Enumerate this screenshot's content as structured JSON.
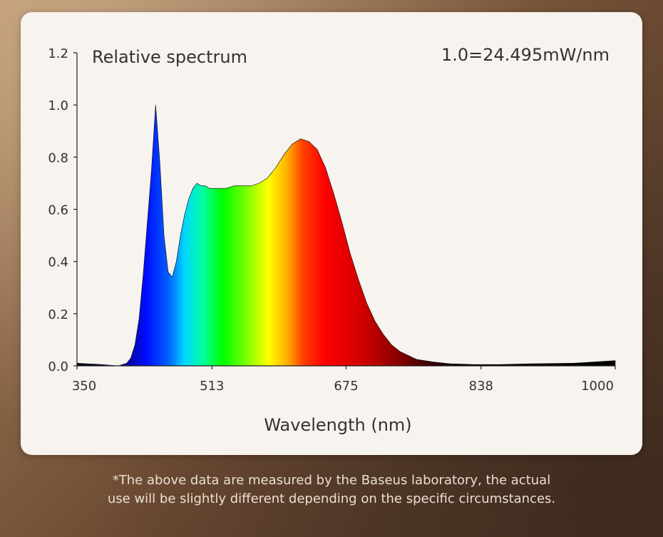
{
  "chart_data": {
    "type": "area",
    "title": "Relative spectrum",
    "annotation": "1.0=24.495mW/nm",
    "xlabel": "Wavelength (nm)",
    "ylabel": "",
    "xlim": [
      350,
      1000
    ],
    "ylim": [
      0,
      1.2
    ],
    "x_ticks": [
      "350",
      "513",
      "675",
      "838",
      "1000"
    ],
    "y_ticks": [
      "0.0",
      "0.2",
      "0.4",
      "0.6",
      "0.8",
      "1.0",
      "1.2"
    ],
    "grid": false,
    "fill": "visible-spectrum color gradient",
    "x": [
      350,
      380,
      400,
      410,
      415,
      420,
      425,
      430,
      435,
      440,
      445,
      450,
      455,
      460,
      465,
      470,
      475,
      480,
      485,
      490,
      495,
      500,
      505,
      510,
      515,
      520,
      530,
      540,
      550,
      560,
      570,
      580,
      590,
      600,
      610,
      620,
      630,
      640,
      650,
      660,
      670,
      680,
      690,
      700,
      710,
      720,
      730,
      740,
      750,
      760,
      780,
      800,
      830,
      860,
      900,
      950,
      1000
    ],
    "values": [
      0.01,
      0.005,
      0.0,
      0.01,
      0.03,
      0.08,
      0.18,
      0.35,
      0.55,
      0.75,
      1.0,
      0.78,
      0.5,
      0.36,
      0.34,
      0.4,
      0.5,
      0.58,
      0.64,
      0.68,
      0.7,
      0.69,
      0.69,
      0.68,
      0.68,
      0.68,
      0.68,
      0.69,
      0.69,
      0.69,
      0.7,
      0.72,
      0.76,
      0.81,
      0.85,
      0.87,
      0.86,
      0.83,
      0.76,
      0.66,
      0.55,
      0.43,
      0.33,
      0.24,
      0.17,
      0.12,
      0.08,
      0.055,
      0.04,
      0.025,
      0.015,
      0.008,
      0.005,
      0.005,
      0.008,
      0.01,
      0.02
    ]
  },
  "footnote": {
    "line1": "*The above data are measured by the Baseus laboratory, the actual",
    "line2": "use will be slightly different depending on the specific circumstances."
  }
}
